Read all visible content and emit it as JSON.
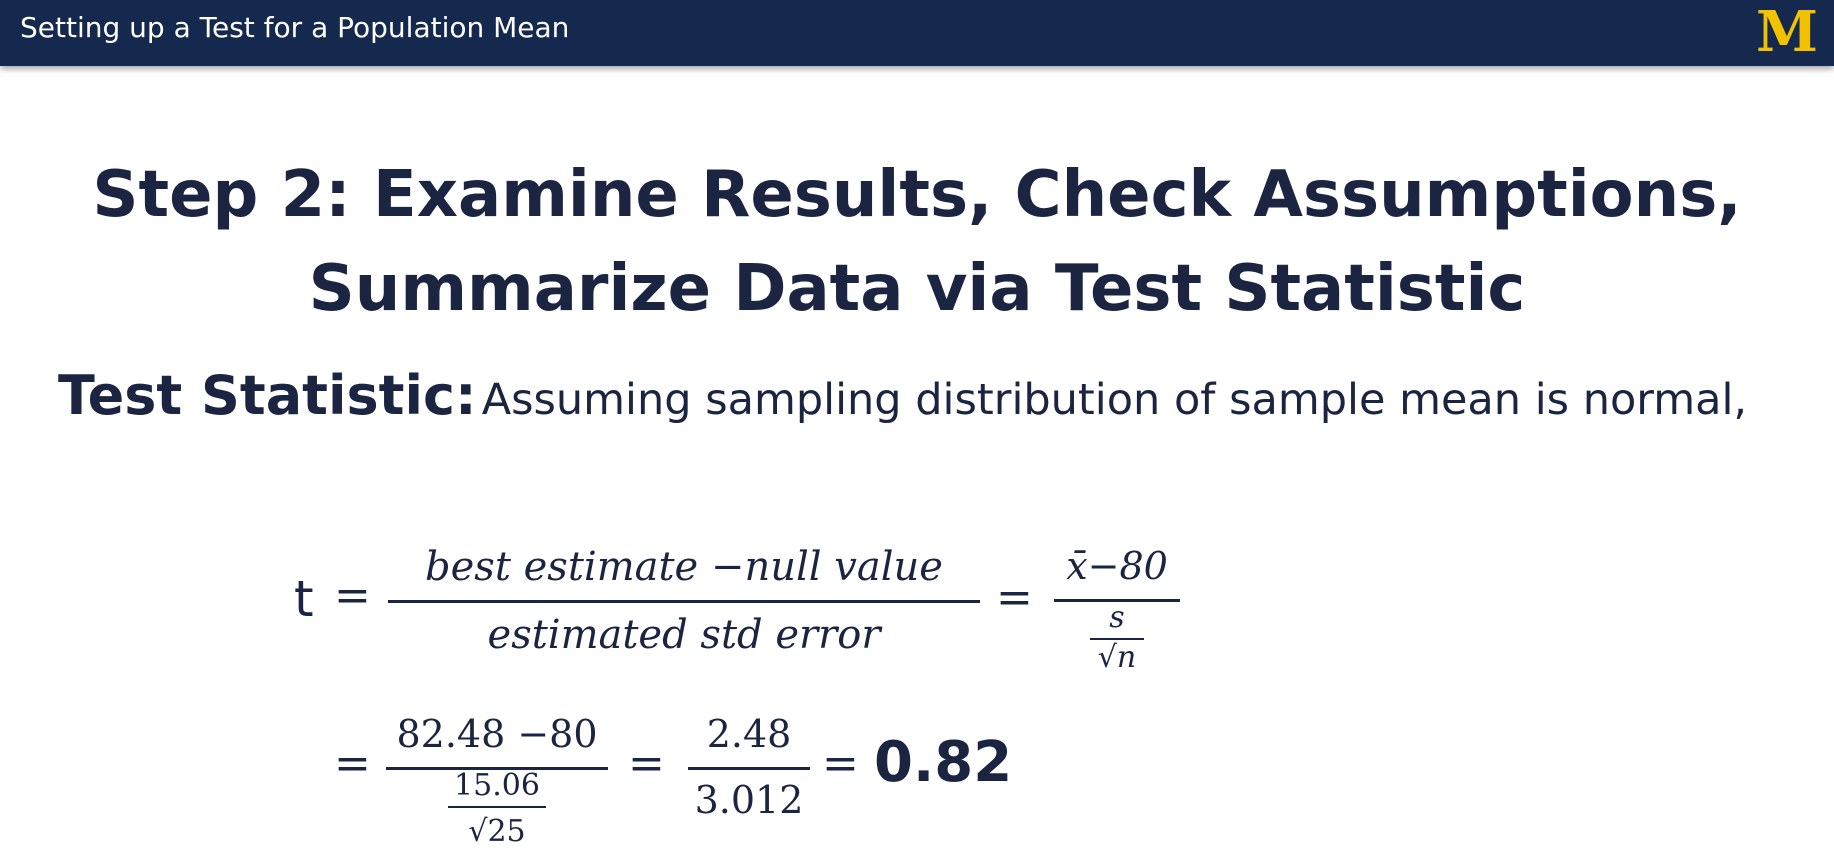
{
  "header": {
    "title": "Setting up a Test for a Population Mean",
    "logo_text": "M",
    "colors": {
      "bar": "#14294d",
      "logo": "#f2c200"
    }
  },
  "slide": {
    "title_line1": "Step 2: Examine Results, Check Assumptions,",
    "title_line2": "Summarize Data via Test Statistic",
    "statement_label": "Test Statistic:",
    "statement_text": "Assuming sampling distribution of sample mean is normal,"
  },
  "equation1": {
    "lhs": "t",
    "eq1": "=",
    "frac1_num": "best estimate −null value",
    "frac1_den": "estimated std error",
    "eq2": "=",
    "frac2_num": "x̄−80",
    "frac2_den_num": "s",
    "frac2_den_den": "√n"
  },
  "equation2": {
    "eq1": "=",
    "frac1_num": "82.48 −80",
    "frac1_den_num": "15.06",
    "frac1_den_den": "√25",
    "eq2": "=",
    "frac2_num": "2.48",
    "frac2_den": "3.012",
    "eq3": "=",
    "result": "0.82"
  }
}
